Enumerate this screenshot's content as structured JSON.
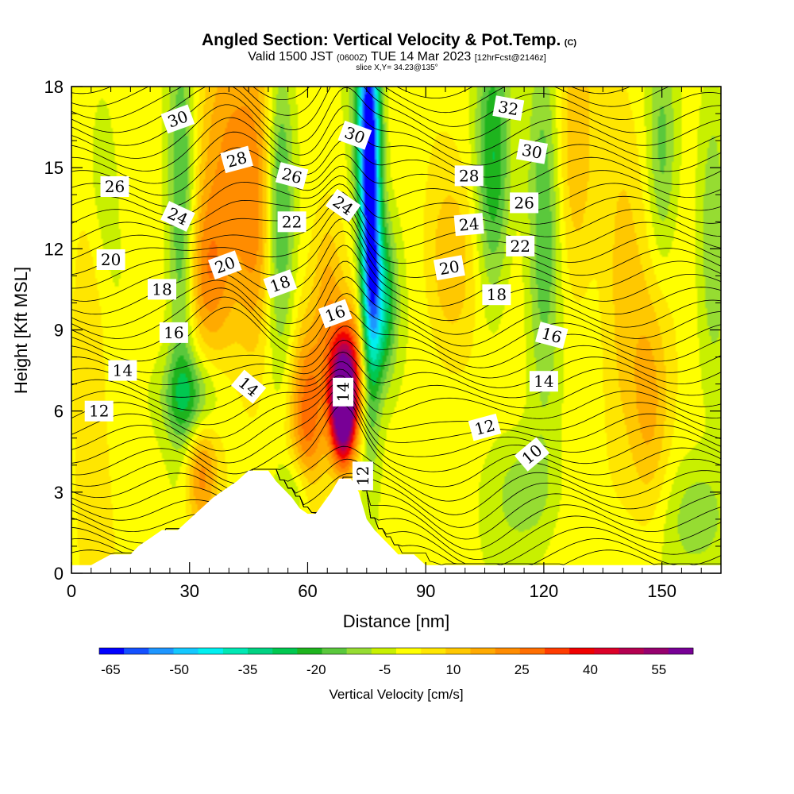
{
  "title": {
    "main": "Angled Section: Vertical Velocity & Pot.Temp.",
    "main_unit": "(C)",
    "valid_prefix": "Valid 1500 JST",
    "valid_z": "(0600Z)",
    "valid_date": "TUE 14 Mar 2023",
    "valid_fcst": "[12hrFcst@2146z]",
    "slice": "slice X,Y= 34.23@135°"
  },
  "chart_data": {
    "type": "heatmap",
    "xlabel": "Distance [nm]",
    "ylabel": "Height [Kft MSL]",
    "xlim": [
      0,
      165
    ],
    "ylim": [
      0,
      18
    ],
    "x_ticks": [
      0,
      30,
      60,
      90,
      120,
      150
    ],
    "y_ticks": [
      0,
      3,
      6,
      9,
      12,
      15,
      18
    ],
    "colorbar": {
      "label": "Vertical Velocity [cm/s]",
      "tick_labels": [
        "-65",
        "-50",
        "-35",
        "-20",
        "-5",
        "10",
        "25",
        "40",
        "55"
      ],
      "tick_values": [
        -65,
        -50,
        -35,
        -20,
        -5,
        10,
        25,
        40,
        55
      ],
      "colors": [
        "#0000ff",
        "#1450ff",
        "#1e96ff",
        "#14c8ff",
        "#00f0f0",
        "#00e8b4",
        "#00d282",
        "#00c850",
        "#1eb41e",
        "#5ac83c",
        "#96dc32",
        "#c8f000",
        "#ffff00",
        "#ffe600",
        "#ffc800",
        "#ffaa00",
        "#ff8c00",
        "#ff6e00",
        "#ff3c00",
        "#f00000",
        "#dc0028",
        "#b40050",
        "#96006e",
        "#780096"
      ]
    },
    "terrain_top_kft": [
      [
        0,
        0.3
      ],
      [
        5,
        0.3
      ],
      [
        10,
        0.7
      ],
      [
        15,
        0.7
      ],
      [
        17,
        1.0
      ],
      [
        20,
        1.3
      ],
      [
        23,
        1.6
      ],
      [
        27,
        1.6
      ],
      [
        30,
        2.0
      ],
      [
        33,
        2.4
      ],
      [
        36,
        2.8
      ],
      [
        39,
        3.1
      ],
      [
        42,
        3.4
      ],
      [
        45,
        3.8
      ],
      [
        50,
        3.8
      ],
      [
        52,
        3.4
      ],
      [
        54,
        3.1
      ],
      [
        56,
        2.8
      ],
      [
        58,
        2.4
      ],
      [
        60,
        2.2
      ],
      [
        62,
        2.2
      ],
      [
        64,
        2.6
      ],
      [
        66,
        3.0
      ],
      [
        68,
        3.5
      ],
      [
        71,
        3.5
      ],
      [
        73,
        3.0
      ],
      [
        75,
        2.0
      ],
      [
        77,
        1.6
      ],
      [
        79,
        1.3
      ],
      [
        81,
        1.0
      ],
      [
        83,
        0.7
      ],
      [
        87,
        0.7
      ],
      [
        90,
        0.3
      ],
      [
        165,
        0.3
      ]
    ],
    "velocity_features": [
      {
        "x": 69,
        "y": 6.0,
        "sx": 2.2,
        "sy": 1.4,
        "v": 68
      },
      {
        "x": 70,
        "y": 7.5,
        "sx": 3.5,
        "sy": 1.6,
        "v": 35
      },
      {
        "x": 60,
        "y": 5.8,
        "sx": 3.2,
        "sy": 2.4,
        "v": 28
      },
      {
        "x": 33,
        "y": 3.6,
        "sx": 3.0,
        "sy": 1.6,
        "v": 22
      },
      {
        "x": 40,
        "y": 15.0,
        "sx": 6.5,
        "sy": 4.5,
        "v": 20
      },
      {
        "x": 34,
        "y": 11.0,
        "sx": 4.0,
        "sy": 2.0,
        "v": 14
      },
      {
        "x": 47,
        "y": 12.5,
        "sx": 3.0,
        "sy": 3.5,
        "v": 14
      },
      {
        "x": 65,
        "y": 10.5,
        "sx": 2.5,
        "sy": 2.0,
        "v": 12
      },
      {
        "x": 96,
        "y": 11.5,
        "sx": 4.5,
        "sy": 2.5,
        "v": 14
      },
      {
        "x": 128,
        "y": 15.0,
        "sx": 3.5,
        "sy": 4.0,
        "v": 12
      },
      {
        "x": 140,
        "y": 11.0,
        "sx": 4.0,
        "sy": 5.0,
        "v": 10
      },
      {
        "x": 147,
        "y": 6.0,
        "sx": 3.5,
        "sy": 3.0,
        "v": 14
      },
      {
        "x": 5,
        "y": 9.0,
        "sx": 3.0,
        "sy": 6.0,
        "v": 10
      },
      {
        "x": 76,
        "y": 12.5,
        "sx": 1.8,
        "sy": 4.5,
        "v": -55
      },
      {
        "x": 75,
        "y": 17.0,
        "sx": 2.2,
        "sy": 3.0,
        "v": -40
      },
      {
        "x": 79,
        "y": 10.0,
        "sx": 2.5,
        "sy": 2.0,
        "v": -30
      },
      {
        "x": 28,
        "y": 13.0,
        "sx": 2.5,
        "sy": 5.0,
        "v": -24
      },
      {
        "x": 30,
        "y": 6.5,
        "sx": 5.0,
        "sy": 1.2,
        "v": -22
      },
      {
        "x": 53,
        "y": 14.0,
        "sx": 2.5,
        "sy": 4.0,
        "v": -22
      },
      {
        "x": 57,
        "y": 3.0,
        "sx": 3.5,
        "sy": 1.0,
        "v": -14
      },
      {
        "x": 107,
        "y": 15.0,
        "sx": 3.0,
        "sy": 3.5,
        "v": -24
      },
      {
        "x": 120,
        "y": 13.0,
        "sx": 3.0,
        "sy": 5.0,
        "v": -18
      },
      {
        "x": 150,
        "y": 15.5,
        "sx": 2.5,
        "sy": 3.0,
        "v": -14
      },
      {
        "x": 163,
        "y": 13.0,
        "sx": 2.5,
        "sy": 4.0,
        "v": -12
      },
      {
        "x": 160,
        "y": 2.0,
        "sx": 6.0,
        "sy": 1.5,
        "v": -12
      },
      {
        "x": 115,
        "y": 3.0,
        "sx": 6.0,
        "sy": 1.5,
        "v": -10
      },
      {
        "x": 7,
        "y": 15.0,
        "sx": 3.0,
        "sy": 3.0,
        "v": -10
      }
    ],
    "theta_contour_labels": [
      {
        "text": "30",
        "x": 27,
        "y": 16.8,
        "angle": -20
      },
      {
        "text": "28",
        "x": 42,
        "y": 15.3,
        "angle": -15
      },
      {
        "text": "26",
        "x": 11,
        "y": 14.3,
        "angle": 0
      },
      {
        "text": "26",
        "x": 56,
        "y": 14.7,
        "angle": 15
      },
      {
        "text": "30",
        "x": 72,
        "y": 16.2,
        "angle": 20
      },
      {
        "text": "32",
        "x": 111,
        "y": 17.2,
        "angle": 10
      },
      {
        "text": "30",
        "x": 117,
        "y": 15.6,
        "angle": 10
      },
      {
        "text": "28",
        "x": 101,
        "y": 14.7,
        "angle": 0
      },
      {
        "text": "26",
        "x": 115,
        "y": 13.7,
        "angle": 0
      },
      {
        "text": "24",
        "x": 27,
        "y": 13.2,
        "angle": 25
      },
      {
        "text": "24",
        "x": 69,
        "y": 13.6,
        "angle": 35
      },
      {
        "text": "22",
        "x": 56,
        "y": 13.0,
        "angle": 0
      },
      {
        "text": "24",
        "x": 101,
        "y": 12.9,
        "angle": -5
      },
      {
        "text": "22",
        "x": 114,
        "y": 12.1,
        "angle": 0
      },
      {
        "text": "20",
        "x": 10,
        "y": 11.6,
        "angle": 0
      },
      {
        "text": "20",
        "x": 39,
        "y": 11.4,
        "angle": -20
      },
      {
        "text": "20",
        "x": 96,
        "y": 11.3,
        "angle": -10
      },
      {
        "text": "18",
        "x": 23,
        "y": 10.5,
        "angle": 0
      },
      {
        "text": "18",
        "x": 53,
        "y": 10.7,
        "angle": -20
      },
      {
        "text": "18",
        "x": 108,
        "y": 10.3,
        "angle": 0
      },
      {
        "text": "16",
        "x": 26,
        "y": 8.9,
        "angle": 0
      },
      {
        "text": "16",
        "x": 67,
        "y": 9.6,
        "angle": -20
      },
      {
        "text": "16",
        "x": 122,
        "y": 8.8,
        "angle": 15
      },
      {
        "text": "14",
        "x": 13,
        "y": 7.5,
        "angle": 0
      },
      {
        "text": "14",
        "x": 45,
        "y": 6.9,
        "angle": 40
      },
      {
        "text": "14",
        "x": 69,
        "y": 6.7,
        "angle": -90
      },
      {
        "text": "14",
        "x": 120,
        "y": 7.1,
        "angle": 0
      },
      {
        "text": "12",
        "x": 7,
        "y": 6.0,
        "angle": 0
      },
      {
        "text": "12",
        "x": 105,
        "y": 5.4,
        "angle": -15
      },
      {
        "text": "12",
        "x": 74,
        "y": 3.6,
        "angle": -90
      },
      {
        "text": "10",
        "x": 117,
        "y": 4.4,
        "angle": -40
      }
    ]
  }
}
